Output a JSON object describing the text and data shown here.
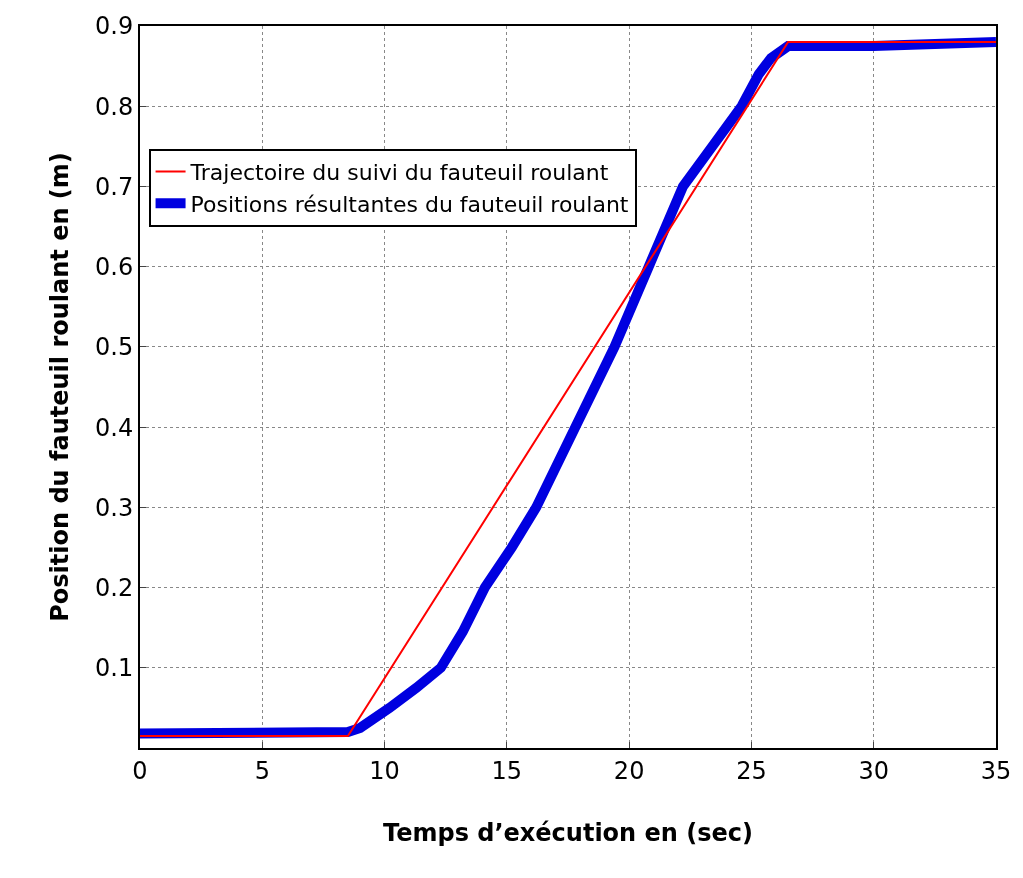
{
  "chart_data": {
    "type": "line",
    "xlabel": "Temps d’exécution en (sec)",
    "ylabel": "Position du fauteuil roulant en (m)",
    "xlim": [
      0,
      35
    ],
    "xticks": [
      0,
      5,
      10,
      15,
      20,
      25,
      30,
      35
    ],
    "ylim": [
      0,
      0.9
    ],
    "yticks": [
      0.1,
      0.2,
      0.3,
      0.4,
      0.5,
      0.6,
      0.7,
      0.8,
      0.9
    ],
    "grid": true,
    "legend": "top left",
    "line_style": "solid",
    "marker": "none",
    "series": [
      {
        "name": "Trajectoire du suivi du fauteuil roulant",
        "color": "#ff0000",
        "x": [
          0,
          8.5,
          26.5,
          35
        ],
        "values": [
          0.015,
          0.015,
          0.88,
          0.88
        ]
      },
      {
        "name": "Positions résultantes du fauteuil roulant",
        "color": "#0000e0",
        "x": [
          0,
          8.5,
          9,
          10.2,
          11.3,
          12.3,
          13.2,
          14.1,
          15.2,
          16.2,
          17.8,
          19.4,
          20.8,
          22.2,
          23.4,
          24.6,
          25.3,
          25.8,
          26.5,
          30,
          35
        ],
        "values": [
          0.018,
          0.02,
          0.025,
          0.05,
          0.075,
          0.1,
          0.145,
          0.2,
          0.25,
          0.3,
          0.4,
          0.5,
          0.6,
          0.7,
          0.75,
          0.8,
          0.84,
          0.86,
          0.875,
          0.875,
          0.88
        ]
      }
    ]
  }
}
